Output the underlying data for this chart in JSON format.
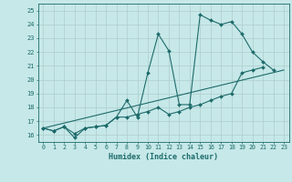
{
  "xlabel": "Humidex (Indice chaleur)",
  "bg_color": "#c6e8e8",
  "line_color": "#1e6b6b",
  "grid_color": "#b0cccc",
  "xlim": [
    -0.5,
    23.5
  ],
  "ylim": [
    15.5,
    25.5
  ],
  "yticks": [
    16,
    17,
    18,
    19,
    20,
    21,
    22,
    23,
    24,
    25
  ],
  "xticks": [
    0,
    1,
    2,
    3,
    4,
    5,
    6,
    7,
    8,
    9,
    10,
    11,
    12,
    13,
    14,
    15,
    16,
    17,
    18,
    19,
    20,
    21,
    22,
    23
  ],
  "line1_x": [
    0,
    1,
    2,
    3,
    4,
    5,
    6,
    7,
    8,
    9,
    10,
    11,
    12,
    13,
    14,
    15,
    16,
    17,
    18,
    19,
    20,
    21,
    22
  ],
  "line1_y": [
    16.5,
    16.3,
    16.6,
    15.8,
    16.5,
    16.6,
    16.7,
    17.3,
    18.5,
    17.3,
    20.5,
    23.3,
    22.1,
    18.2,
    18.2,
    24.7,
    24.3,
    24.0,
    24.2,
    23.3,
    22.0,
    21.3,
    20.7
  ],
  "line2_x": [
    0,
    1,
    2,
    3,
    4,
    5,
    6,
    7,
    8,
    9,
    10,
    11,
    12,
    13,
    14,
    15,
    16,
    17,
    18,
    19,
    20,
    21
  ],
  "line2_y": [
    16.5,
    16.3,
    16.6,
    16.1,
    16.5,
    16.6,
    16.7,
    17.3,
    17.3,
    17.5,
    17.7,
    18.0,
    17.5,
    17.7,
    18.0,
    18.2,
    18.5,
    18.8,
    19.0,
    20.5,
    20.7,
    20.9
  ],
  "line3_x": [
    0,
    23
  ],
  "line3_y": [
    16.5,
    20.7
  ]
}
